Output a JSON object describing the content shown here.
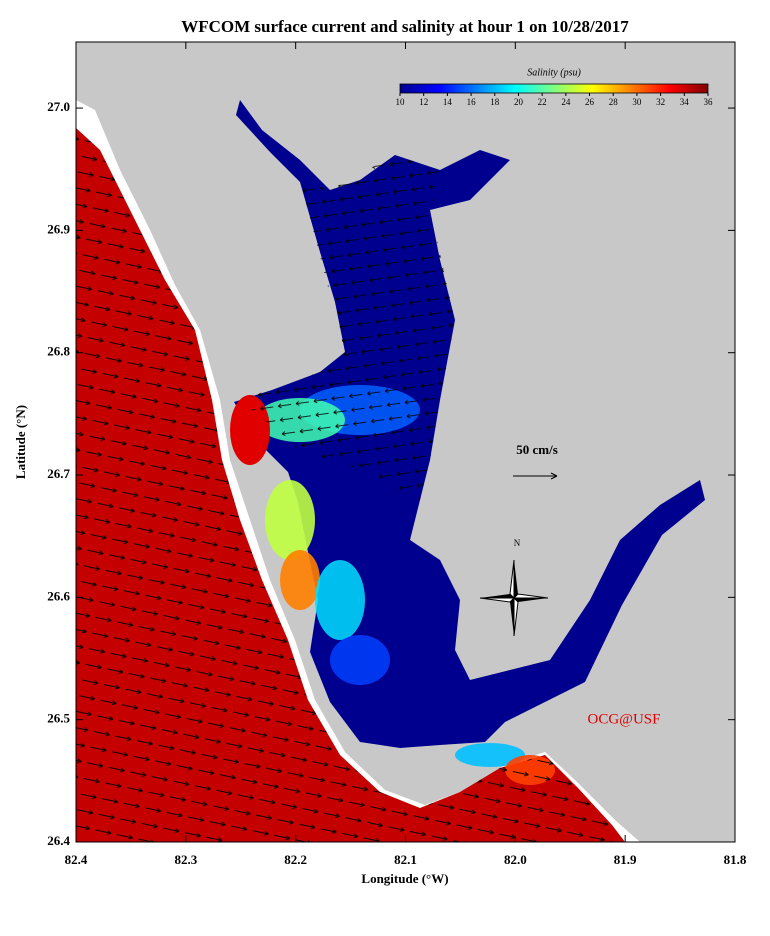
{
  "title": "WFCOM surface current and salinity at hour 1 on 10/28/2017",
  "x_axis": {
    "label": "Longitude (°W)",
    "lim": [
      82.4,
      81.8
    ],
    "ticks": [
      82.4,
      82.3,
      82.2,
      82.1,
      {
        "value": 82,
        "label": "82.0"
      },
      81.9,
      81.8
    ]
  },
  "y_axis": {
    "label": "Latitude (°N)",
    "lim": [
      26.4,
      27.054
    ],
    "ticks": [
      26.4,
      26.5,
      26.6,
      26.7,
      26.8,
      26.9,
      {
        "value": 27,
        "label": "27.0"
      }
    ]
  },
  "colorbar": {
    "label": "Salinity (psu)",
    "lim": [
      10,
      36
    ],
    "ticks": [
      10,
      12,
      14,
      16,
      18,
      20,
      22,
      24,
      26,
      28,
      30,
      32,
      34,
      36
    ],
    "colors": [
      "#00008f",
      "#0000ff",
      "#0080ff",
      "#00ffff",
      "#80ff80",
      "#ffff00",
      "#ff8000",
      "#ff0000",
      "#800000"
    ]
  },
  "scale_label": "50 cm/s",
  "compass_label": "N",
  "credit": "OCG@USF"
}
